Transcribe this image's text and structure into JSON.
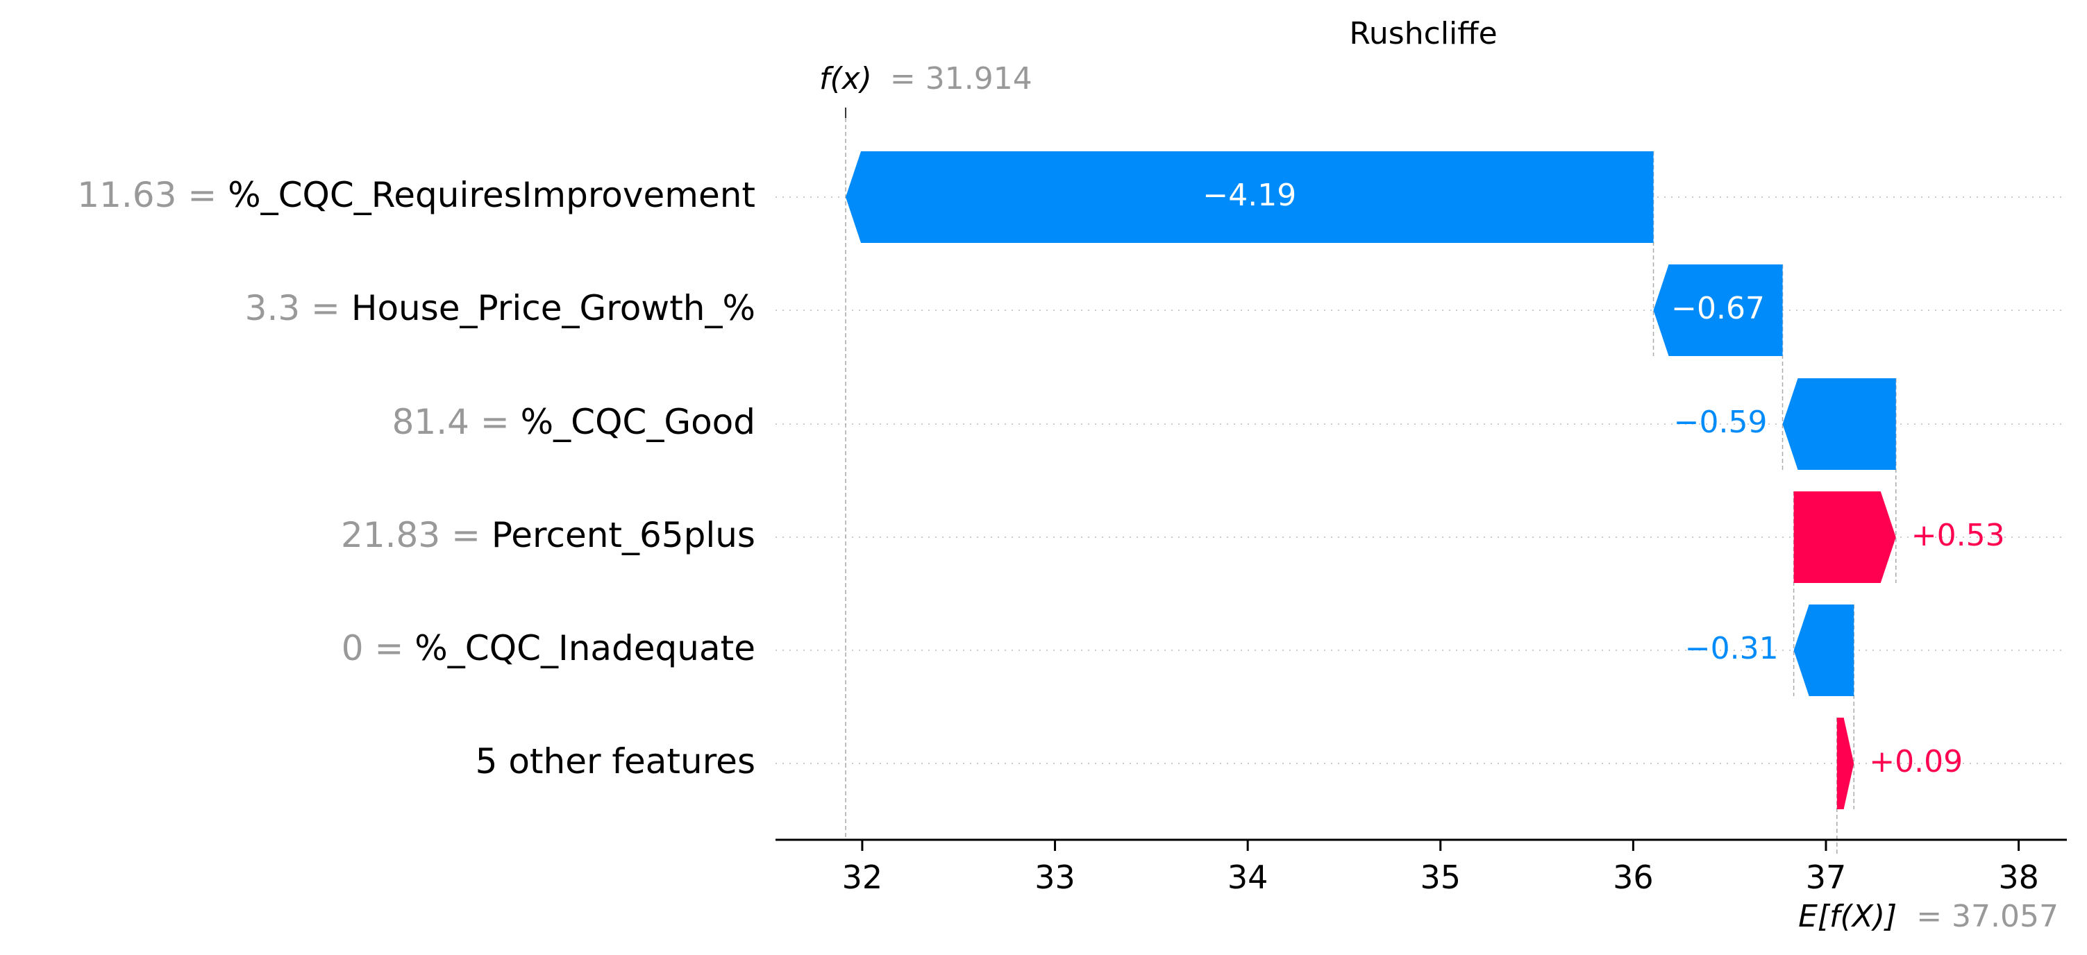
{
  "chart_data": {
    "type": "waterfall",
    "title": "Rushcliffe",
    "fx": {
      "label": "f(x)",
      "value_text": "= 31.914",
      "value": 31.914
    },
    "base": {
      "label": "E[f(X)]",
      "value_text": "= 37.057",
      "value": 37.057
    },
    "xlim": [
      31.55,
      38.25
    ],
    "xticks": [
      32,
      33,
      34,
      35,
      36,
      37,
      38
    ],
    "features": [
      {
        "value": "11.63 =",
        "name": "%_CQC_RequiresImprovement",
        "contribution": -4.19,
        "label": "−4.19",
        "start": 36.105,
        "end": 31.914
      },
      {
        "value": "3.3 =",
        "name": "House_Price_Growth_%",
        "contribution": -0.67,
        "label": "−0.67",
        "start": 36.775,
        "end": 36.105
      },
      {
        "value": "81.4 =",
        "name": "%_CQC_Good",
        "contribution": -0.59,
        "label": "−0.59",
        "start": 37.363,
        "end": 36.775
      },
      {
        "value": "21.83 =",
        "name": "Percent_65plus",
        "contribution": 0.53,
        "label": "+0.53",
        "start": 36.833,
        "end": 37.363
      },
      {
        "value": "0 =",
        "name": "%_CQC_Inadequate",
        "contribution": -0.31,
        "label": "−0.31",
        "start": 37.145,
        "end": 36.833
      },
      {
        "value": "",
        "name": "5 other features",
        "contribution": 0.09,
        "label": "+0.09",
        "start": 37.057,
        "end": 37.145
      }
    ],
    "colors": {
      "positive": "#ff0051",
      "negative": "#008bfb",
      "muted": "#999999",
      "text": "#000000"
    },
    "grid": "dotted horizontal"
  }
}
